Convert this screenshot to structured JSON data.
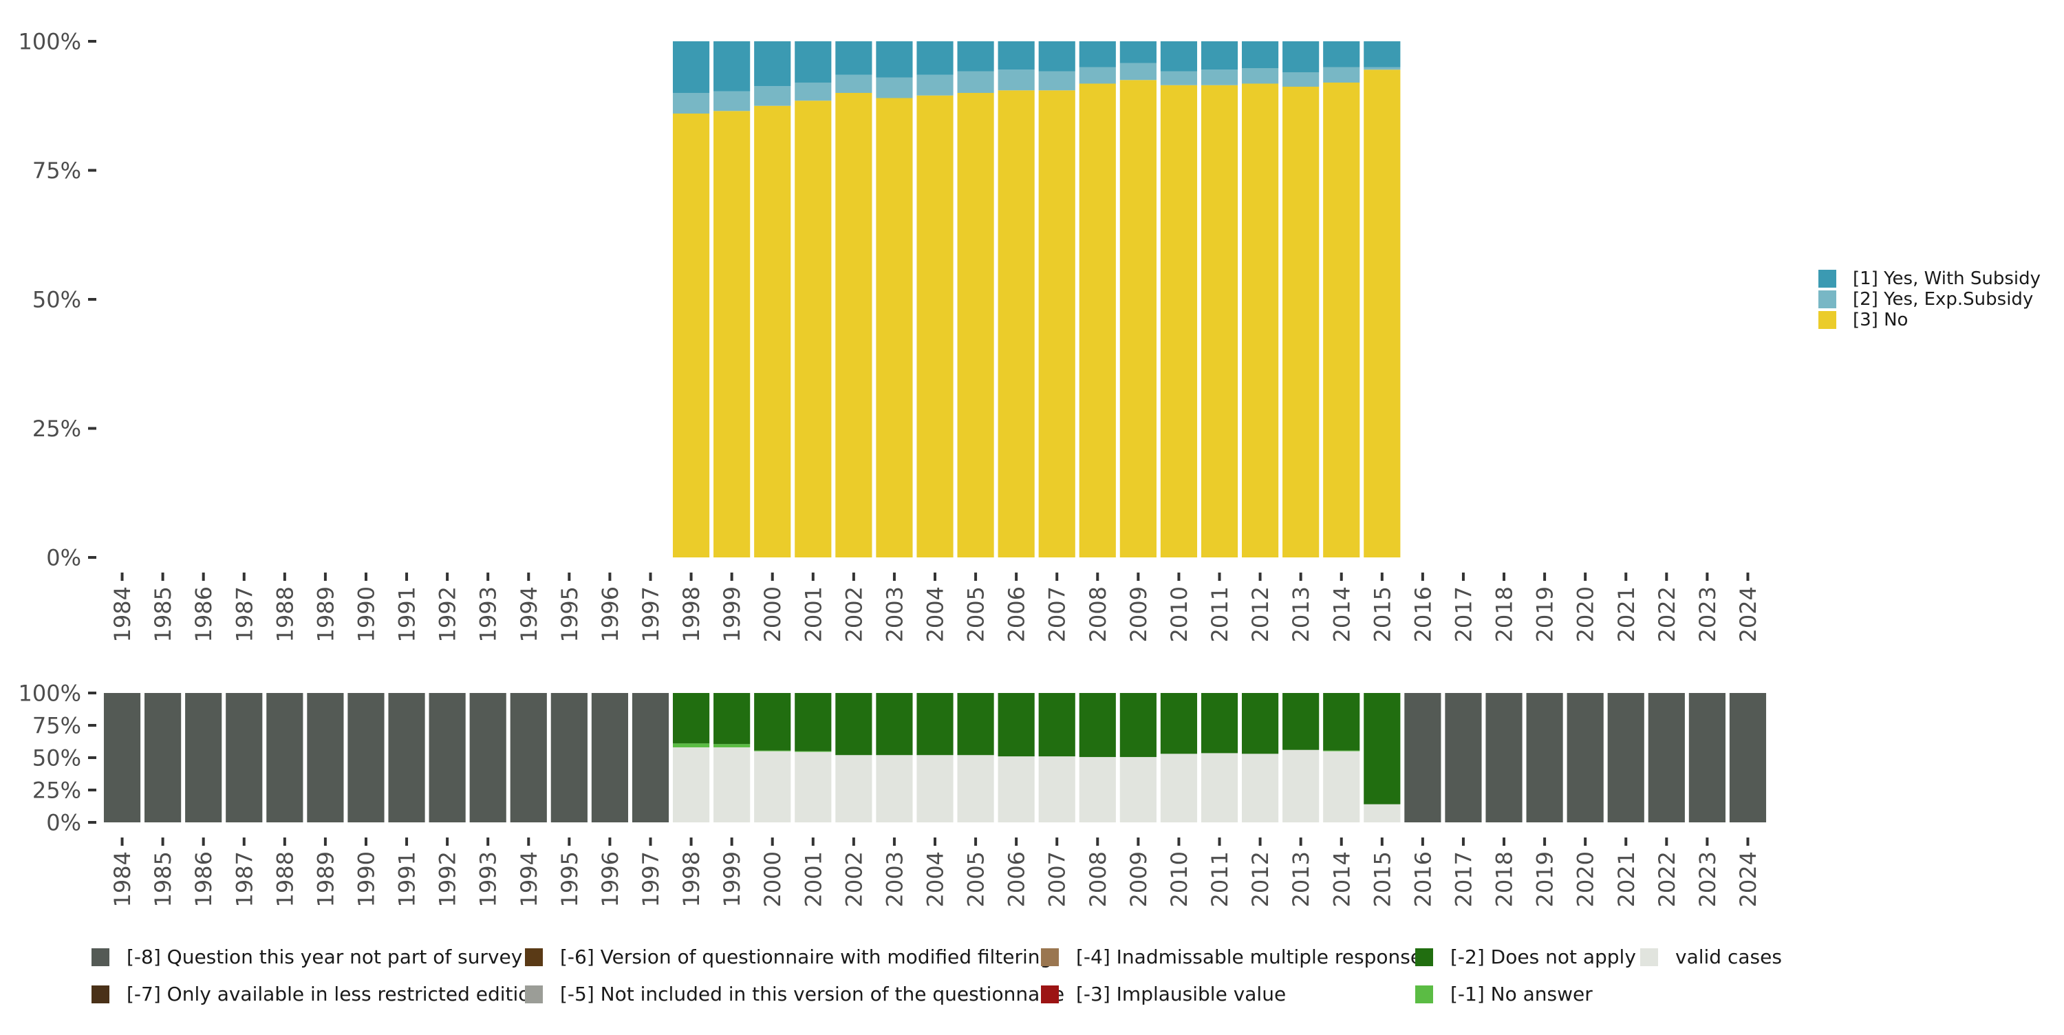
{
  "chart_data": [
    {
      "type": "bar",
      "stacked": true,
      "normalized": true,
      "title": "",
      "xlabel": "",
      "ylabel": "",
      "ylim": [
        0,
        1
      ],
      "ytick_labels": [
        "0%",
        "25%",
        "50%",
        "75%",
        "100%"
      ],
      "categories": [
        "1984",
        "1985",
        "1986",
        "1987",
        "1988",
        "1989",
        "1990",
        "1991",
        "1992",
        "1993",
        "1994",
        "1995",
        "1996",
        "1997",
        "1998",
        "1999",
        "2000",
        "2001",
        "2002",
        "2003",
        "2004",
        "2005",
        "2006",
        "2007",
        "2008",
        "2009",
        "2010",
        "2011",
        "2012",
        "2013",
        "2014",
        "2015",
        "2016",
        "2017",
        "2018",
        "2019",
        "2020",
        "2021",
        "2022",
        "2023",
        "2024"
      ],
      "legend_position": "right",
      "series": [
        {
          "name": "[3] No",
          "color": "#EBCC2A",
          "values": [
            null,
            null,
            null,
            null,
            null,
            null,
            null,
            null,
            null,
            null,
            null,
            null,
            null,
            null,
            0.86,
            0.865,
            0.875,
            0.885,
            0.9,
            0.89,
            0.895,
            0.9,
            0.905,
            0.905,
            0.918,
            0.925,
            0.915,
            0.915,
            0.918,
            0.912,
            0.92,
            0.945,
            null,
            null,
            null,
            null,
            null,
            null,
            null,
            null,
            null
          ]
        },
        {
          "name": "[2] Yes, Exp.Subsidy",
          "color": "#78B7C5",
          "values": [
            null,
            null,
            null,
            null,
            null,
            null,
            null,
            null,
            null,
            null,
            null,
            null,
            null,
            null,
            0.04,
            0.038,
            0.038,
            0.035,
            0.035,
            0.04,
            0.04,
            0.042,
            0.04,
            0.037,
            0.032,
            0.033,
            0.027,
            0.03,
            0.03,
            0.028,
            0.03,
            0.005,
            null,
            null,
            null,
            null,
            null,
            null,
            null,
            null,
            null
          ]
        },
        {
          "name": "[1] Yes, With Subsidy",
          "color": "#3B9AB2",
          "values": [
            null,
            null,
            null,
            null,
            null,
            null,
            null,
            null,
            null,
            null,
            null,
            null,
            null,
            null,
            0.1,
            0.097,
            0.087,
            0.08,
            0.065,
            0.07,
            0.065,
            0.058,
            0.055,
            0.058,
            0.05,
            0.042,
            0.058,
            0.055,
            0.052,
            0.06,
            0.05,
            0.05,
            null,
            null,
            null,
            null,
            null,
            null,
            null,
            null,
            null
          ]
        }
      ]
    },
    {
      "type": "bar",
      "stacked": true,
      "normalized": true,
      "title": "",
      "xlabel": "",
      "ylabel": "",
      "ylim": [
        0,
        1
      ],
      "ytick_labels": [
        "0%",
        "25%",
        "50%",
        "75%",
        "100%"
      ],
      "categories": [
        "1984",
        "1985",
        "1986",
        "1987",
        "1988",
        "1989",
        "1990",
        "1991",
        "1992",
        "1993",
        "1994",
        "1995",
        "1996",
        "1997",
        "1998",
        "1999",
        "2000",
        "2001",
        "2002",
        "2003",
        "2004",
        "2005",
        "2006",
        "2007",
        "2008",
        "2009",
        "2010",
        "2011",
        "2012",
        "2013",
        "2014",
        "2015",
        "2016",
        "2017",
        "2018",
        "2019",
        "2020",
        "2021",
        "2022",
        "2023",
        "2024"
      ],
      "legend_position": "bottom",
      "series": [
        {
          "name": "valid cases",
          "color": "#E1E4DE",
          "values": [
            0,
            0,
            0,
            0,
            0,
            0,
            0,
            0,
            0,
            0,
            0,
            0,
            0,
            0,
            0.58,
            0.58,
            0.55,
            0.545,
            0.52,
            0.52,
            0.52,
            0.52,
            0.51,
            0.51,
            0.505,
            0.505,
            0.53,
            0.535,
            0.53,
            0.56,
            0.55,
            0.14,
            0,
            0,
            0,
            0,
            0,
            0,
            0,
            0,
            0
          ]
        },
        {
          "name": "[-1] No answer",
          "color": "#5BBC44",
          "values": [
            0,
            0,
            0,
            0,
            0,
            0,
            0,
            0,
            0,
            0,
            0,
            0,
            0,
            0,
            0.03,
            0.025,
            0.005,
            0.005,
            0,
            0,
            0,
            0,
            0,
            0,
            0,
            0,
            0,
            0,
            0,
            0,
            0.005,
            0,
            0,
            0,
            0,
            0,
            0,
            0,
            0,
            0,
            0
          ]
        },
        {
          "name": "[-2] Does not apply",
          "color": "#216E10",
          "values": [
            0,
            0,
            0,
            0,
            0,
            0,
            0,
            0,
            0,
            0,
            0,
            0,
            0,
            0,
            0.39,
            0.395,
            0.445,
            0.45,
            0.48,
            0.48,
            0.48,
            0.48,
            0.49,
            0.49,
            0.495,
            0.495,
            0.47,
            0.465,
            0.47,
            0.44,
            0.445,
            0.86,
            0,
            0,
            0,
            0,
            0,
            0,
            0,
            0,
            0
          ]
        },
        {
          "name": "[-8] Question this year not part of survey",
          "color": "#545A55",
          "values": [
            1,
            1,
            1,
            1,
            1,
            1,
            1,
            1,
            1,
            1,
            1,
            1,
            1,
            1,
            0,
            0,
            0,
            0,
            0,
            0,
            0,
            0,
            0,
            0,
            0,
            0,
            0,
            0,
            0,
            0,
            0,
            0,
            1,
            1,
            1,
            1,
            1,
            1,
            1,
            1,
            1
          ]
        }
      ],
      "legend_entries": [
        {
          "name": "[-8] Question this year not part of survey",
          "color": "#545A55"
        },
        {
          "name": "[-7] Only available in less restricted edition",
          "color": "#4A3118"
        },
        {
          "name": "[-6] Version of questionnaire with modified filtering",
          "color": "#5A3A16"
        },
        {
          "name": "[-5] Not included in this version of the questionnaire",
          "color": "#9B9D97"
        },
        {
          "name": "[-4] Inadmissable multiple response",
          "color": "#9A7650"
        },
        {
          "name": "[-3] Implausible value",
          "color": "#9C1414"
        },
        {
          "name": "[-2] Does not apply",
          "color": "#216E10"
        },
        {
          "name": "[-1] No answer",
          "color": "#5BBC44"
        },
        {
          "name": "valid cases",
          "color": "#E1E4DE"
        }
      ]
    }
  ]
}
